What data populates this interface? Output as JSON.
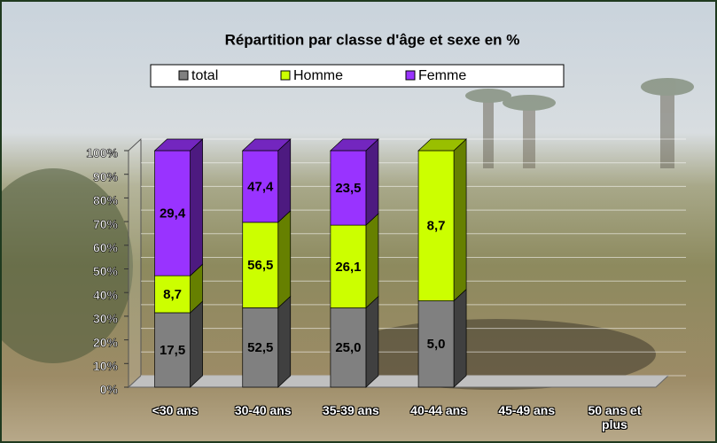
{
  "chart_data": {
    "type": "bar",
    "stacking": "percent",
    "title": "Répartition par classe d'âge et sexe en %",
    "categories": [
      "<30 ans",
      "30-40 ans",
      "35-39 ans",
      "40-44 ans",
      "45-49 ans",
      "50 ans et plus"
    ],
    "series": [
      {
        "name": "total",
        "color": "#808080",
        "values": [
          17.5,
          52.5,
          25.0,
          5.0,
          null,
          null
        ],
        "value_labels": [
          "17,5",
          "52,5",
          "25,0",
          "5,0",
          null,
          null
        ]
      },
      {
        "name": "Homme",
        "color": "#ccff00",
        "values": [
          8.7,
          56.5,
          26.1,
          8.7,
          null,
          null
        ],
        "value_labels": [
          "8,7",
          "56,5",
          "26,1",
          "8,7",
          null,
          null
        ]
      },
      {
        "name": "Femme",
        "color": "#9933ff",
        "values": [
          29.4,
          47.4,
          23.5,
          null,
          null,
          null
        ],
        "value_labels": [
          "29,4",
          "47,4",
          "23,5",
          null,
          null,
          null
        ]
      }
    ],
    "ylim": [
      0,
      100
    ],
    "yticks": [
      {
        "value": 0,
        "label": "0%"
      },
      {
        "value": 10,
        "label": "10%"
      },
      {
        "value": 20,
        "label": "20%"
      },
      {
        "value": 30,
        "label": "30%"
      },
      {
        "value": 40,
        "label": "40%"
      },
      {
        "value": 50,
        "label": "50%"
      },
      {
        "value": 60,
        "label": "60%"
      },
      {
        "value": 70,
        "label": "70%"
      },
      {
        "value": 80,
        "label": "80%"
      },
      {
        "value": 90,
        "label": "90%"
      },
      {
        "value": 100,
        "label": "100%"
      }
    ],
    "grid": true,
    "legend": "top"
  }
}
